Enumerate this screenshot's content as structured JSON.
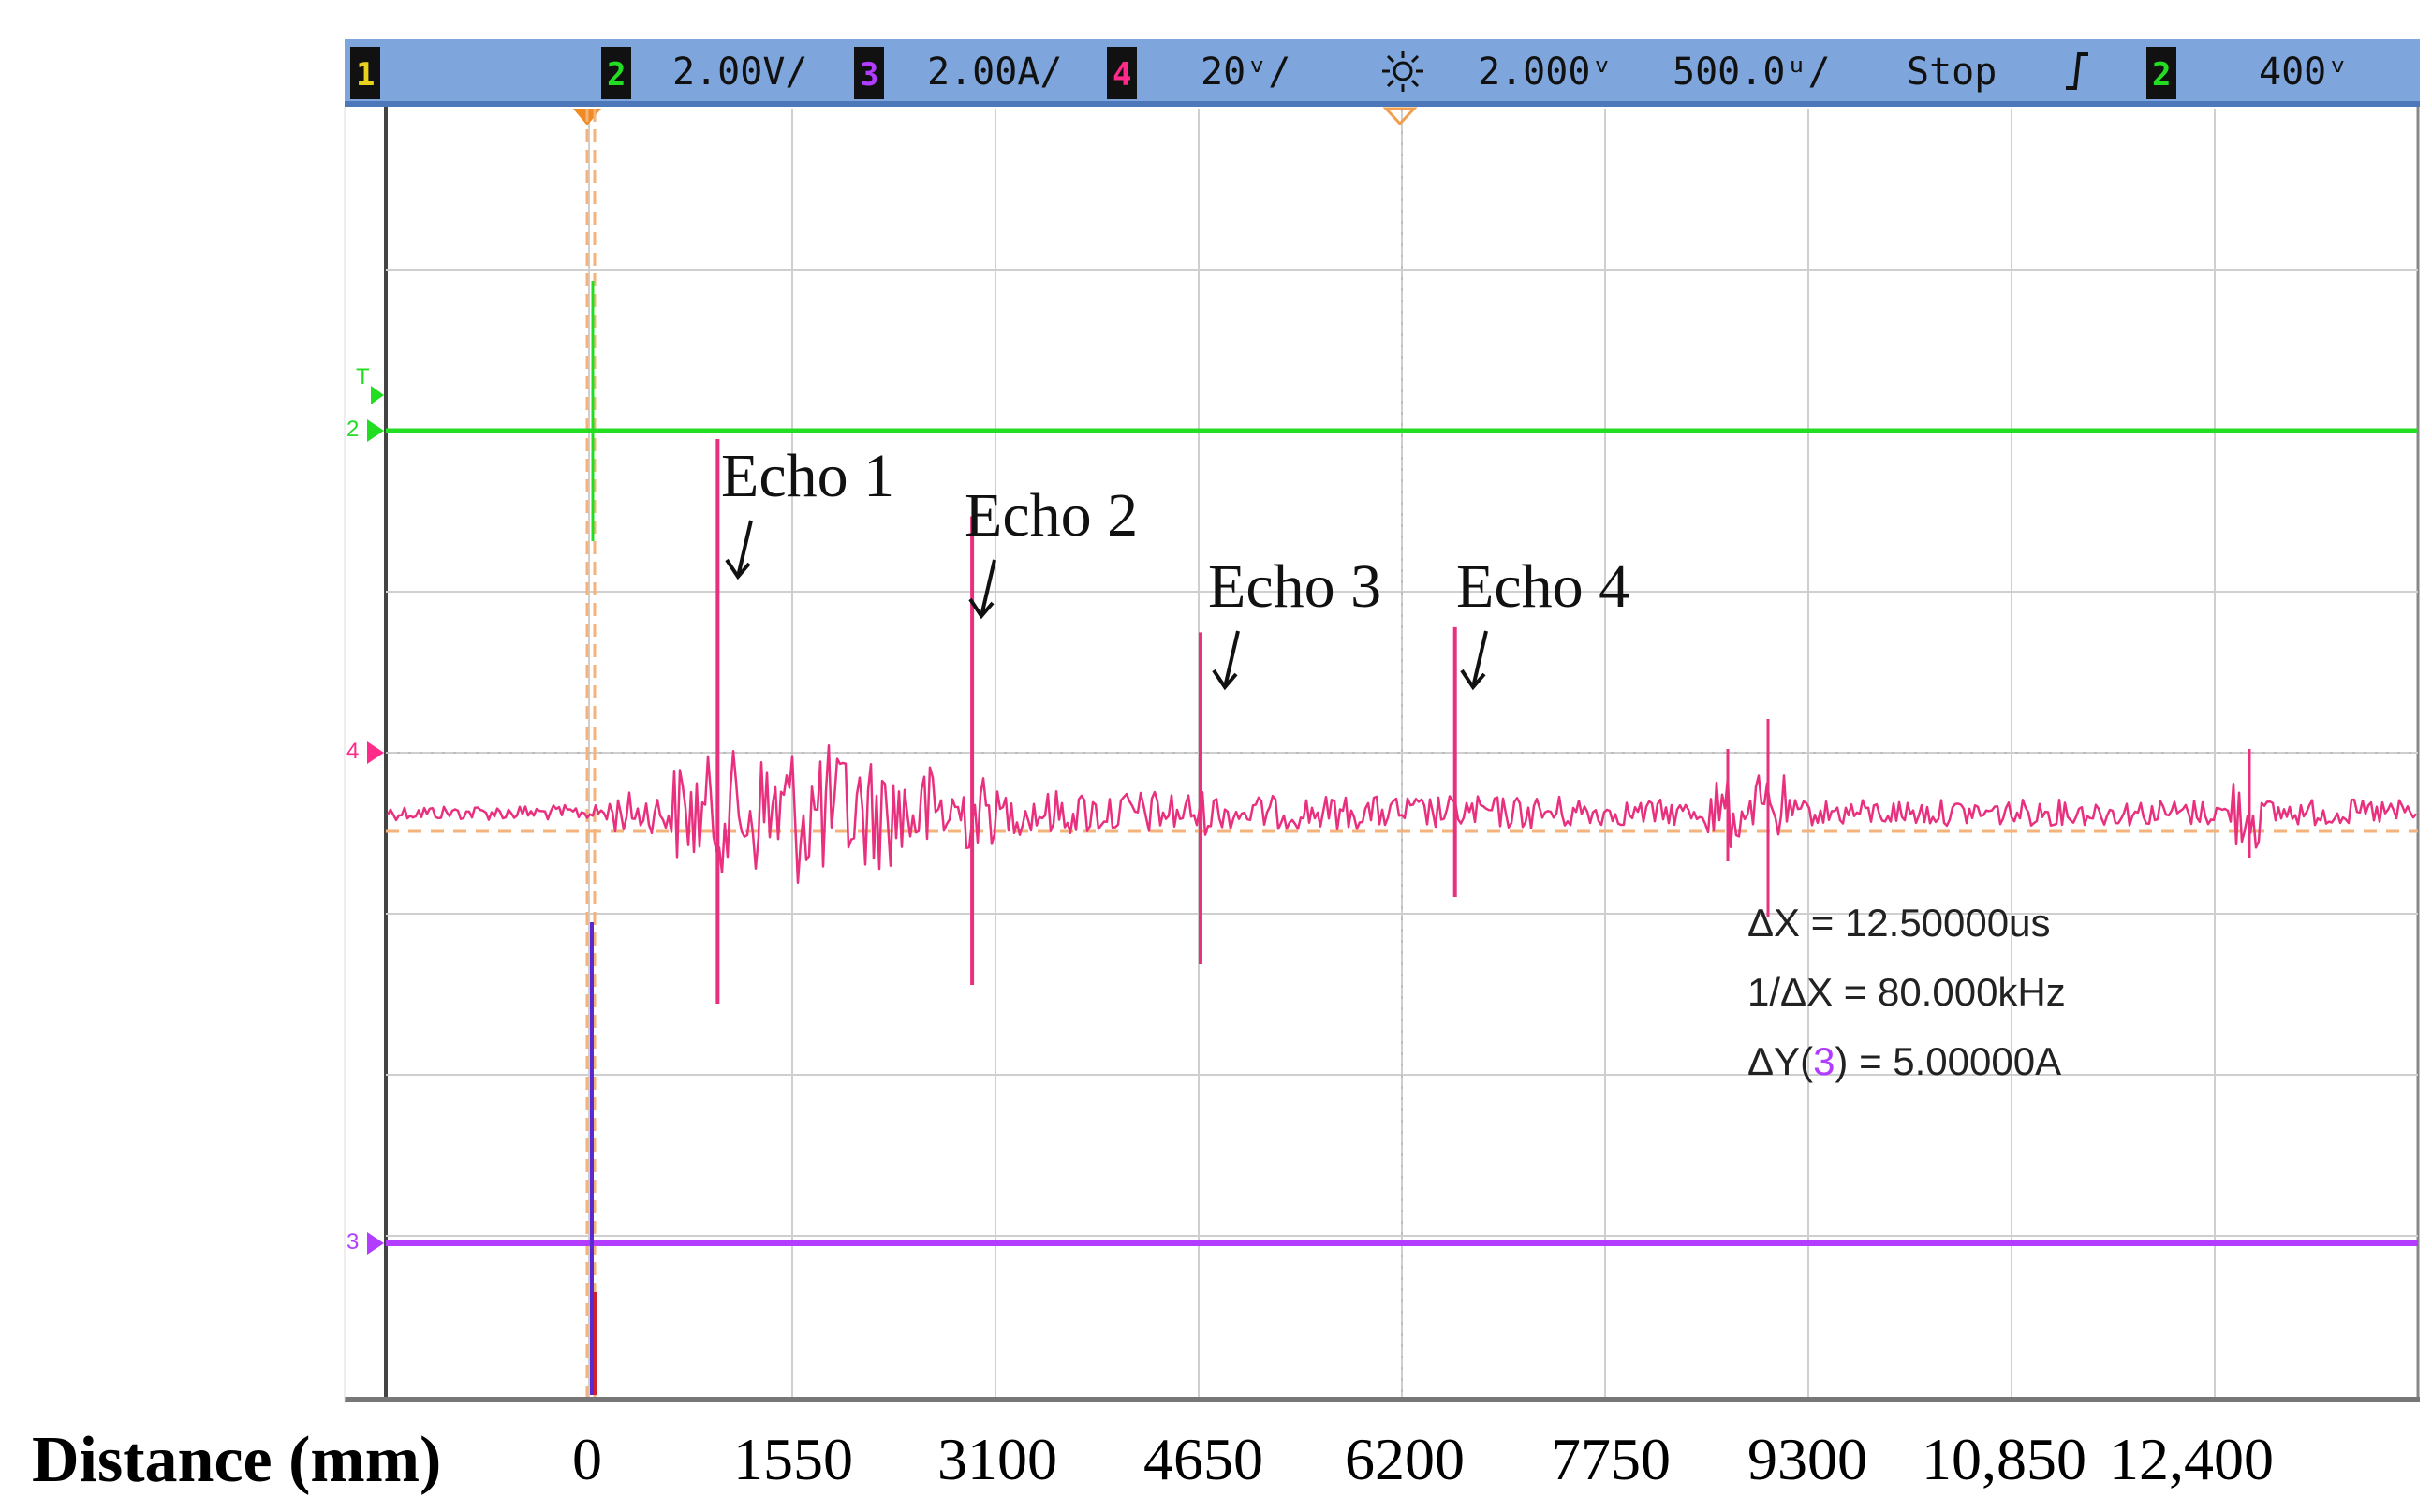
{
  "header": {
    "ch1": {
      "num": "1",
      "scale": "",
      "color": "#e8d21c"
    },
    "ch2": {
      "num": "2",
      "scale": "2.00V/",
      "color": "#22dd22"
    },
    "ch3": {
      "num": "3",
      "scale": "2.00A/",
      "color": "#b23cff"
    },
    "ch4": {
      "num": "4",
      "scale": "20ᵛ/",
      "color": "#ff2a8a"
    },
    "timebase_icon": "brightness-icon",
    "delay": "2.000ᵛ",
    "timebase": "500.0ᵘ/",
    "run_state": "Stop",
    "trigger_icon": "rising-edge-icon",
    "trigger_ch": "2",
    "trigger_level": "400ᵛ",
    "bar_color": "#7fa6dc"
  },
  "markers": {
    "trigger": "T",
    "ch2": "2",
    "ch4": "4",
    "ch3": "3"
  },
  "measurements": {
    "dx": "ΔX = 12.50000us",
    "inv_dx": "1/ΔX = 80.000kHz",
    "dy_prefix": "ΔY(",
    "dy_ch": "3",
    "dy_suffix": ") = 5.00000A"
  },
  "echoes": [
    "Echo 1",
    "Echo 2",
    "Echo 3",
    "Echo 4"
  ],
  "distance_axis": {
    "title": "Distance (mm)",
    "ticks": [
      "0",
      "1550",
      "3100",
      "4650",
      "6200",
      "7750",
      "9300",
      "10,850",
      "12,400"
    ]
  },
  "chart_data": {
    "type": "line",
    "title": "",
    "xlabel": "Distance (mm)",
    "ylabel": "",
    "x_ticks": [
      0,
      1550,
      3100,
      4650,
      6200,
      7750,
      9300,
      10850,
      12400
    ],
    "xlim": [
      -1550,
      13950
    ],
    "grid": true,
    "series": [
      {
        "name": "2",
        "color": "#22dd22",
        "kind": "flat"
      },
      {
        "name": "3",
        "color": "#b23cff",
        "kind": "flat"
      },
      {
        "name": "4",
        "color": "#e8307f",
        "kind": "echo-signal"
      }
    ],
    "echo_positions_mm": [
      1000,
      2950,
      4700,
      6650
    ],
    "echo_peaks_div": [
      1.45,
      1.15,
      0.7,
      0.72
    ]
  }
}
